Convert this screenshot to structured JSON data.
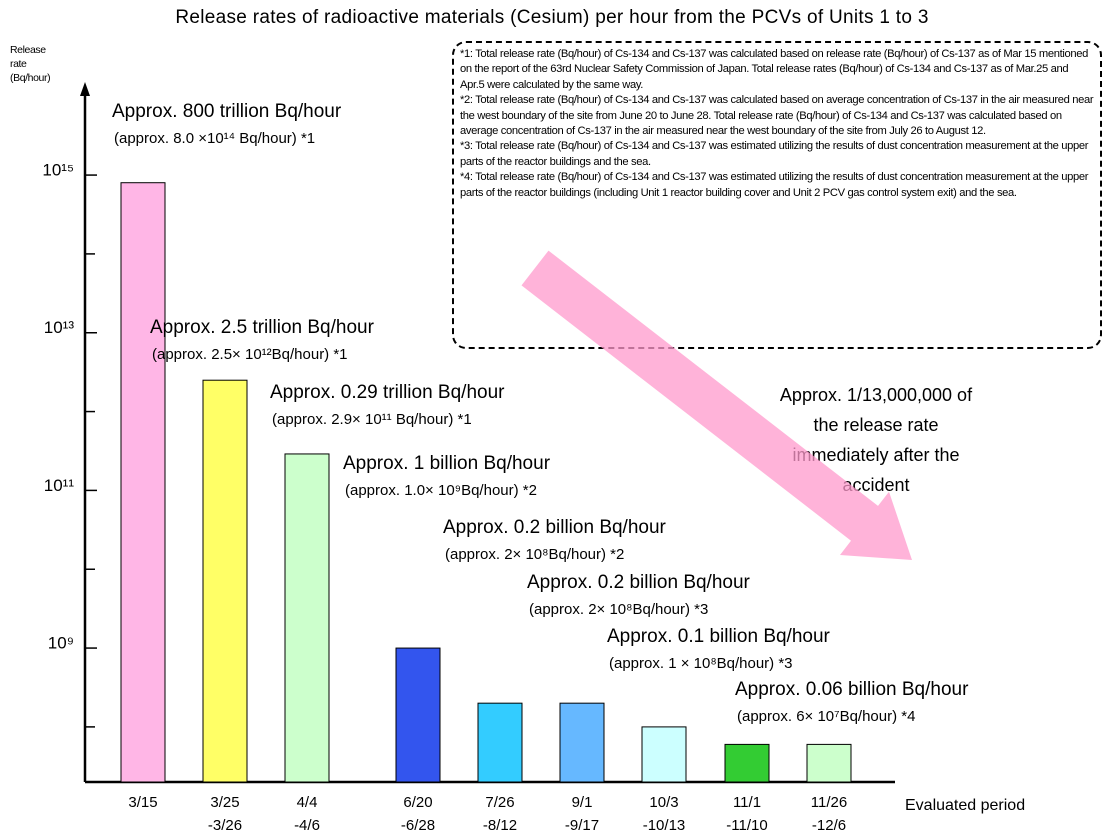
{
  "chart_data": {
    "type": "bar",
    "title": "Release rates of radioactive materials (Cesium) per hour from the PCVs of Units 1 to 3",
    "y_label": [
      "Release",
      "rate",
      "(Bq/hour)"
    ],
    "x_label": "Evaluated period",
    "log_scale": true,
    "categories": [
      [
        "3/15"
      ],
      [
        "3/25",
        "-3/26"
      ],
      [
        "4/4",
        "-4/6"
      ],
      [
        "6/20",
        "-6/28"
      ],
      [
        "7/26",
        "-8/12"
      ],
      [
        "9/1",
        "-9/17"
      ],
      [
        "10/3",
        "-10/13"
      ],
      [
        "11/1",
        "-11/10"
      ],
      [
        "11/26",
        "-12/6"
      ]
    ],
    "values": [
      800000000000000,
      2500000000000,
      290000000000,
      1000000000,
      200000000,
      200000000,
      100000000,
      60000000,
      60000000
    ],
    "colors": [
      "#ffb6e6",
      "#ffff66",
      "#ccffcc",
      "#3355ee",
      "#33ccff",
      "#66b8ff",
      "#ccffff",
      "#33cc33",
      "#ccffcc"
    ],
    "ylim": [
      20000000,
      12000000000000000
    ],
    "yticks": [
      {
        "value": 1000000000,
        "label": "10⁹"
      },
      {
        "value": 100000000000,
        "label": "10¹¹"
      },
      {
        "value": 10000000000000,
        "label": "10¹³"
      },
      {
        "value": 1000000000000000,
        "label": "10¹⁵"
      }
    ],
    "minor_yticks": [
      100000000,
      10000000000,
      1000000000000,
      100000000000000
    ],
    "annotations": [
      {
        "main": "Approx. 800 trillion Bq/hour",
        "detail": "(approx. 8.0 ×10¹⁴ Bq/hour) *1"
      },
      {
        "main": "Approx. 2.5 trillion Bq/hour",
        "detail": "(approx. 2.5× 10¹²Bq/hour) *1"
      },
      {
        "main": "Approx. 0.29 trillion Bq/hour",
        "detail": "(approx. 2.9× 10¹¹ Bq/hour) *1"
      },
      {
        "main": "Approx. 1 billion Bq/hour",
        "detail": "(approx. 1.0× 10⁹Bq/hour) *2"
      },
      {
        "main": "Approx. 0.2 billion Bq/hour",
        "detail": "(approx. 2× 10⁸Bq/hour) *2"
      },
      {
        "main": "Approx. 0.2 billion Bq/hour",
        "detail": "(approx. 2× 10⁸Bq/hour) *3"
      },
      {
        "main": "Approx. 0.1 billion Bq/hour",
        "detail": "(approx. 1 × 10⁸Bq/hour) *3"
      },
      {
        "main": "Approx. 0.06 billion Bq/hour",
        "detail": "(approx. 6× 10⁷Bq/hour) *4"
      }
    ],
    "arrow_note": [
      "Approx. 1/13,000,000 of",
      "the release rate",
      "immediately after the",
      "accident"
    ],
    "notes": [
      "*1: Total release rate (Bq/hour) of Cs-134 and Cs-137 was calculated based on release rate (Bq/hour) of Cs-137 as of Mar 15 mentioned on the report of the 63rd Nuclear Safety Commission of Japan. Total release rates (Bq/hour) of Cs-134 and Cs-137 as of Mar.25 and Apr.5 were calculated by the same way.",
      "*2: Total release rate (Bq/hour) of Cs-134 and Cs-137 was calculated based on average concentration of Cs-137 in the air measured near the west boundary of the site from June 20 to June 28. Total release rate (Bq/hour) of Cs-134 and Cs-137 was calculated based on average concentration of Cs-137 in the air measured near the west boundary of the site from July 26 to August 12.",
      "*3: Total release rate (Bq/hour) of Cs-134 and Cs-137 was estimated utilizing the results of dust concentration measurement at the upper parts of the reactor buildings and the sea.",
      "*4: Total release rate (Bq/hour) of Cs-134 and Cs-137 was estimated utilizing the results of dust concentration measurement at the upper parts of the reactor buildings (including Unit 1 reactor building cover and Unit 2 PCV gas control system exit) and the sea."
    ]
  }
}
